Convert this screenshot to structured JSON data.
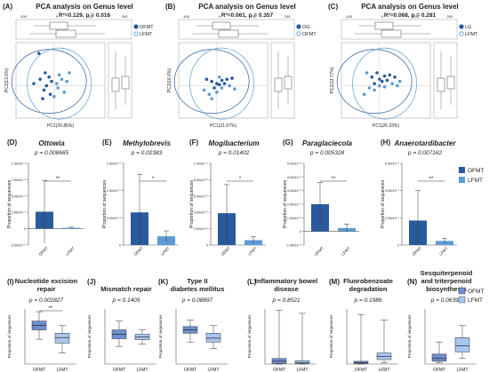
{
  "colors": {
    "ofmt": "#2a5a9e",
    "lfmt": "#5b9bd5",
    "axis": "#555555",
    "box_ofmt": "#6f8fd1",
    "box_lfmt": "#a9c6ee"
  },
  "pca_panels": [
    {
      "letter": "(A)",
      "title": "PCA analysis on Genus level",
      "stats": "R²=0.129, p = 0.016",
      "xlabel": "PC1(20.85%)",
      "ylabel": "PC2(13.6%)",
      "legend": [
        "OFMT",
        "LFMT"
      ],
      "top_ticks": [
        "-100",
        "0",
        "100",
        "200"
      ],
      "side_ticks": [
        "-200",
        "-100",
        "0",
        "100",
        "200"
      ]
    },
    {
      "letter": "(B)",
      "title": "PCA analysis on Genus level",
      "stats": "R²=0.061, p = 0.357",
      "xlabel": "PC1(21.57%)",
      "ylabel": "PC2(16.6%)",
      "legend": [
        "OG",
        "OFMT"
      ],
      "top_ticks": [
        "-100",
        "0",
        "100",
        "200"
      ],
      "side_ticks": [
        "-100",
        "0",
        "100",
        "200"
      ]
    },
    {
      "letter": "(C)",
      "title": "PCA analysis on Genus level",
      "stats": "R²=0.068, p = 0.281",
      "xlabel": "PC1(26.33%)",
      "ylabel": "PC2(13.77%)",
      "legend": [
        "LG",
        "LFMT"
      ],
      "top_ticks": [
        "-100",
        "0",
        "100",
        "200"
      ],
      "side_ticks": [
        "-100",
        "0",
        "100",
        "200"
      ]
    }
  ],
  "chart_data": [
    {
      "type": "scatter",
      "title": "PCA analysis on Genus level",
      "subtitle": "R²=0.129, p = 0.016",
      "xlabel": "PC1(20.85%)",
      "ylabel": "PC2(13.6%)",
      "series": [
        {
          "name": "OFMT",
          "points": [
            [
              -60,
              150
            ],
            [
              -35,
              60
            ],
            [
              -55,
              30
            ],
            [
              -80,
              10
            ],
            [
              -40,
              -20
            ],
            [
              -20,
              40
            ],
            [
              -15,
              -40
            ],
            [
              -45,
              -60
            ],
            [
              -30,
              0
            ],
            [
              -10,
              20
            ]
          ]
        },
        {
          "name": "LFMT",
          "points": [
            [
              10,
              10
            ],
            [
              30,
              30
            ],
            [
              15,
              -10
            ],
            [
              50,
              20
            ],
            [
              40,
              -30
            ],
            [
              20,
              50
            ],
            [
              60,
              60
            ],
            [
              0,
              -50
            ]
          ]
        }
      ]
    },
    {
      "type": "scatter",
      "title": "PCA analysis on Genus level",
      "subtitle": "R²=0.061, p = 0.357",
      "xlabel": "PC1(21.57%)",
      "ylabel": "PC2(16.6%)",
      "series": [
        {
          "name": "OG",
          "points": [
            [
              -40,
              30
            ],
            [
              -20,
              20
            ],
            [
              0,
              10
            ],
            [
              20,
              25
            ],
            [
              40,
              30
            ],
            [
              60,
              35
            ],
            [
              -10,
              -10
            ],
            [
              10,
              5
            ],
            [
              30,
              10
            ]
          ]
        },
        {
          "name": "OFMT",
          "points": [
            [
              -50,
              -20
            ],
            [
              -30,
              -40
            ],
            [
              0,
              -30
            ],
            [
              20,
              -10
            ],
            [
              50,
              0
            ],
            [
              70,
              -15
            ],
            [
              -20,
              -60
            ],
            [
              10,
              40
            ]
          ]
        }
      ]
    },
    {
      "type": "scatter",
      "title": "PCA analysis on Genus level",
      "subtitle": "R²=0.068, p = 0.281",
      "xlabel": "PC1(26.33%)",
      "ylabel": "PC2(13.77%)",
      "series": [
        {
          "name": "LG",
          "points": [
            [
              -30,
              40
            ],
            [
              -10,
              60
            ],
            [
              0,
              30
            ],
            [
              20,
              45
            ],
            [
              40,
              50
            ],
            [
              60,
              40
            ],
            [
              -20,
              10
            ],
            [
              10,
              20
            ],
            [
              30,
              25
            ]
          ]
        },
        {
          "name": "LFMT",
          "points": [
            [
              -40,
              -10
            ],
            [
              -20,
              -20
            ],
            [
              0,
              0
            ],
            [
              20,
              -5
            ],
            [
              50,
              10
            ],
            [
              70,
              0
            ],
            [
              -60,
              -40
            ],
            [
              -50,
              60
            ],
            [
              80,
              20
            ]
          ]
        }
      ]
    },
    {
      "type": "bar",
      "letter": "(D)",
      "title": "Ottowia",
      "pvalue": "p = 0.008665",
      "ylabel": "Proportion of sequences",
      "categories": [
        "OFMT",
        "LFMT"
      ],
      "values": [
        2.6e-05,
        1.3e-06
      ],
      "errors": [
        4.8e-05,
        1e-06
      ],
      "ylim": [
        -2.5e-05,
        0.0001
      ],
      "yticks": [
        "1.00x10⁻⁴",
        "7.50x10⁻⁵",
        "5.00x10⁻⁵",
        "2.50x10⁻⁵",
        "0",
        "-2.50x10⁻⁵"
      ],
      "sig": "**"
    },
    {
      "type": "bar",
      "letter": "(E)",
      "title": "Methylobrevis",
      "pvalue": "p = 0.02383",
      "ylabel": "Proportion of sequences",
      "categories": [
        "OFMT",
        "LFMT"
      ],
      "values": [
        6e-06,
        1.6e-06
      ],
      "errors": [
        7e-06,
        1e-06
      ],
      "ylim": [
        0,
        1.5e-05
      ],
      "yticks": [
        "1.50x10⁻⁵",
        "1.00x10⁻⁵",
        "5.00x10⁻⁶",
        "0"
      ],
      "sig": "*"
    },
    {
      "type": "bar",
      "letter": "(F)",
      "title": "Mogibacterium",
      "pvalue": "p = 0.01402",
      "ylabel": "Proportion of sequences",
      "categories": [
        "OFMT",
        "LFMT"
      ],
      "values": [
        3.9e-05,
        6e-06
      ],
      "errors": [
        3.5e-05,
        4e-06
      ],
      "ylim": [
        0,
        0.0001
      ],
      "yticks": [
        "1.00x10⁻⁴",
        "8.00x10⁻⁵",
        "6.00x10⁻⁵",
        "4.00x10⁻⁵",
        "2.00x10⁻⁵",
        "0"
      ],
      "sig": "*"
    },
    {
      "type": "bar",
      "letter": "(G)",
      "title": "Paraglaciecola",
      "pvalue": "p = 0.005328",
      "ylabel": "Proportion of sequences",
      "categories": [
        "OFMT",
        "LFMT"
      ],
      "values": [
        2e-05,
        2.5e-06
      ],
      "errors": [
        1.6e-05,
        3e-06
      ],
      "ylim": [
        -1e-05,
        5e-05
      ],
      "yticks": [
        "5.00x10⁻⁵",
        "4.00x10⁻⁵",
        "3.00x10⁻⁵",
        "2.00x10⁻⁵",
        "1.00x10⁻⁵",
        "0",
        "-1.00x10⁻⁵"
      ],
      "sig": "**"
    },
    {
      "type": "bar",
      "letter": "(H)",
      "title": "Anaerotardibacter",
      "pvalue": "p = 0.007162",
      "ylabel": "Proportion of sequences",
      "categories": [
        "OFMT",
        "LFMT"
      ],
      "values": [
        1.8e-05,
        3e-06
      ],
      "errors": [
        2.2e-05,
        2e-06
      ],
      "ylim": [
        0,
        6e-05
      ],
      "yticks": [
        "6.00x10⁻⁵",
        "4.00x10⁻⁵",
        "2.00x10⁻⁵",
        "0"
      ],
      "sig": "**"
    },
    {
      "type": "box",
      "letter": "(I)",
      "title": "Nucleotide excision repair",
      "pvalue": "p = 0.002827",
      "ylabel": "Proportion of sequences",
      "categories": [
        "OFMT",
        "LFMT"
      ],
      "boxes": [
        [
          0.45,
          0.62,
          0.7,
          0.78,
          0.95
        ],
        [
          0.2,
          0.38,
          0.48,
          0.56,
          0.7
        ]
      ],
      "ylim": [
        0,
        1
      ],
      "sig": "**"
    },
    {
      "type": "box",
      "letter": "(J)",
      "title": "Mismatch repair",
      "pvalue": "p = 0.1405",
      "ylabel": "Proportion of sequences",
      "categories": [
        "OFMT",
        "LFMT"
      ],
      "boxes": [
        [
          0.32,
          0.46,
          0.54,
          0.62,
          0.78
        ],
        [
          0.36,
          0.44,
          0.49,
          0.54,
          0.62
        ]
      ],
      "ylim": [
        0,
        1
      ]
    },
    {
      "type": "box",
      "letter": "(K)",
      "title": "Type II diabetes mellitus",
      "pvalue": "p = 0.08897",
      "ylabel": "Proportion of sequences",
      "categories": [
        "OFMT",
        "LFMT"
      ],
      "boxes": [
        [
          0.4,
          0.56,
          0.62,
          0.68,
          0.8
        ],
        [
          0.28,
          0.4,
          0.47,
          0.56,
          0.7
        ]
      ],
      "ylim": [
        0,
        1
      ]
    },
    {
      "type": "box",
      "letter": "(L)",
      "title": "Inflammatory bowel disease",
      "pvalue": "p = 0.8521",
      "ylabel": "Proportion of sequences",
      "categories": [
        "OFMT",
        "LFMT"
      ],
      "boxes": [
        [
          0.0,
          0.01,
          0.05,
          0.1,
          0.98
        ],
        [
          0.0,
          0.01,
          0.02,
          0.06,
          0.92
        ]
      ],
      "ylim": [
        0,
        1
      ]
    },
    {
      "type": "box",
      "letter": "(M)",
      "title": "Fluorobenzoate degradation",
      "pvalue": "p = 0.1986",
      "ylabel": "Proportion of sequences",
      "categories": [
        "OFMT",
        "LFMT"
      ],
      "boxes": [
        [
          0.0,
          0.01,
          0.02,
          0.05,
          0.9
        ],
        [
          0.02,
          0.08,
          0.14,
          0.2,
          0.8
        ]
      ],
      "ylim": [
        0,
        1
      ]
    },
    {
      "type": "box",
      "letter": "(N)",
      "title": "Sesquiterpenoid and triterpenoid biosynthesis",
      "pvalue": "p = 0.06392",
      "ylabel": "Proportion of sequences",
      "categories": [
        "OFMT",
        "LFMT"
      ],
      "boxes": [
        [
          0.02,
          0.05,
          0.1,
          0.18,
          0.4
        ],
        [
          0.1,
          0.22,
          0.33,
          0.48,
          0.7
        ]
      ],
      "ylim": [
        0,
        1
      ]
    }
  ],
  "legend_bars": [
    "OFMT",
    "LFMT"
  ]
}
